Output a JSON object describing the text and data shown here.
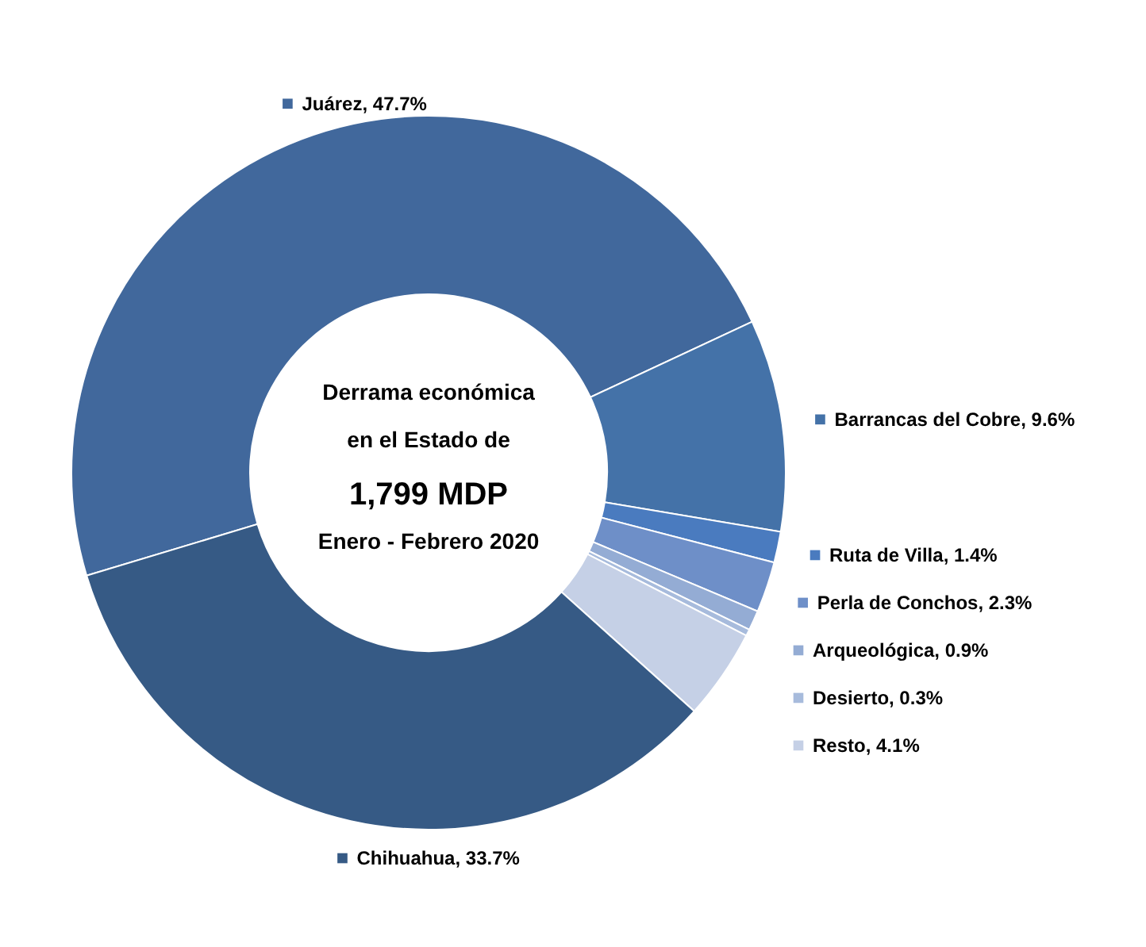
{
  "chart_data": {
    "type": "donut",
    "categories": [
      "Juárez",
      "Barrancas del Cobre",
      "Ruta de Villa",
      "Perla de Conchos",
      "Arqueológica",
      "Desierto",
      "Resto",
      "Chihuahua"
    ],
    "values": [
      47.7,
      9.6,
      1.4,
      2.3,
      0.9,
      0.3,
      4.1,
      33.7
    ],
    "value_labels": [
      "47.7%",
      "9.6%",
      "1.4%",
      "2.3%",
      "0.9%",
      "0.3%",
      "4.1%",
      "33.7%"
    ],
    "colors": [
      "#41689c",
      "#4472a8",
      "#4a7bbf",
      "#6e8fc8",
      "#94acd4",
      "#a7bbdc",
      "#c5d0e6",
      "#365a85"
    ],
    "annotations": [
      "Derrama económica",
      "en el Estado de",
      "1,799 MDP",
      "Enero - Febrero 2020"
    ],
    "legend": "right"
  }
}
